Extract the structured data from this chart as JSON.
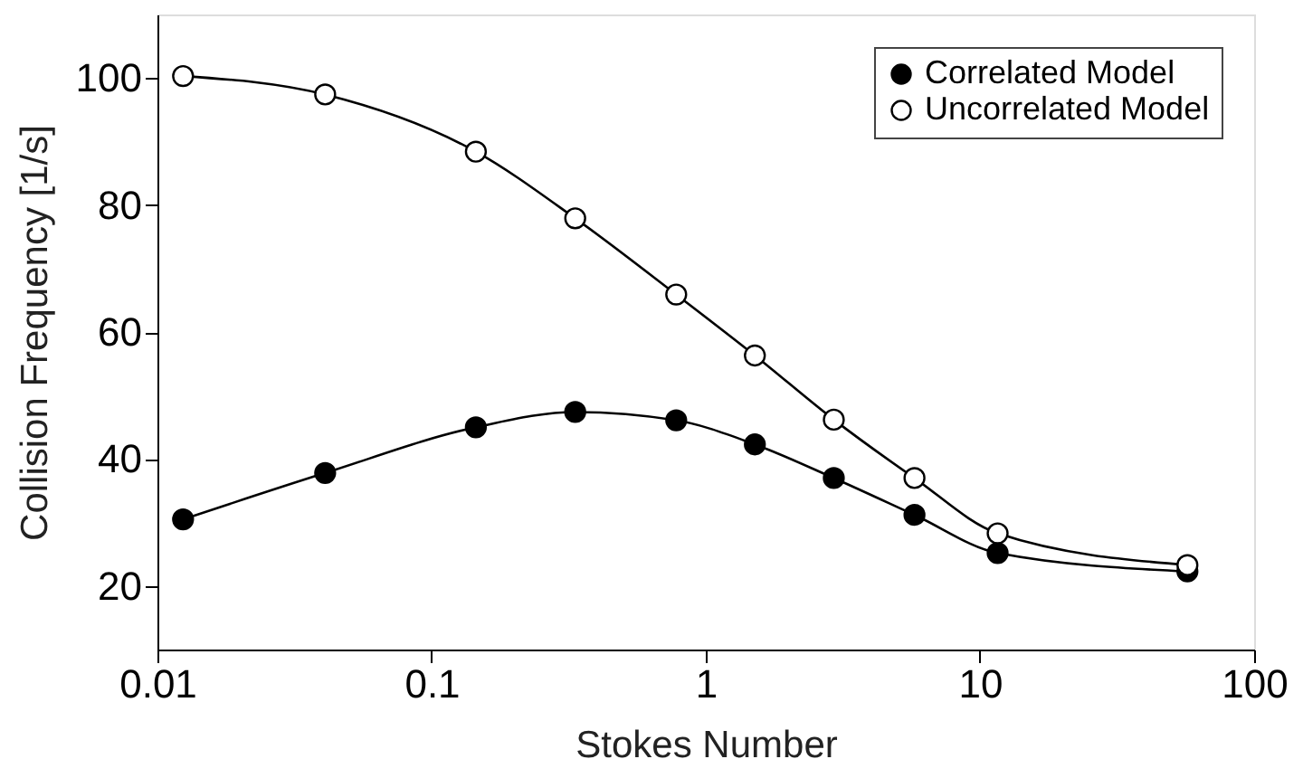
{
  "chart_data": {
    "type": "line",
    "xlabel": "Stokes Number",
    "ylabel": "Collision Frequency [1/s]",
    "x": [
      0.0124,
      0.0409,
      0.145,
      0.334,
      0.78,
      1.51,
      2.93,
      5.77,
      11.6,
      57.1
    ],
    "series": [
      {
        "name": "Correlated Model",
        "color": "#000000",
        "values": [
          30.5,
          37.8,
          45.0,
          47.4,
          46.1,
          42.3,
          37.0,
          31.2,
          25.2,
          22.3
        ]
      },
      {
        "name": "Uncorrelated Model",
        "color": "#000000",
        "values": [
          100.3,
          97.4,
          88.4,
          77.9,
          65.9,
          56.3,
          46.2,
          37.0,
          28.3,
          23.3
        ]
      }
    ],
    "log": "x",
    "xlim": [
      0.01,
      100
    ],
    "xticks": [
      0.01,
      0.1,
      1,
      10,
      100
    ],
    "ylim": [
      10,
      110
    ],
    "yticks": [
      20,
      40,
      60,
      80,
      100
    ],
    "grid": false,
    "legend": "top right",
    "marker": "circle",
    "line_style": "solid"
  }
}
